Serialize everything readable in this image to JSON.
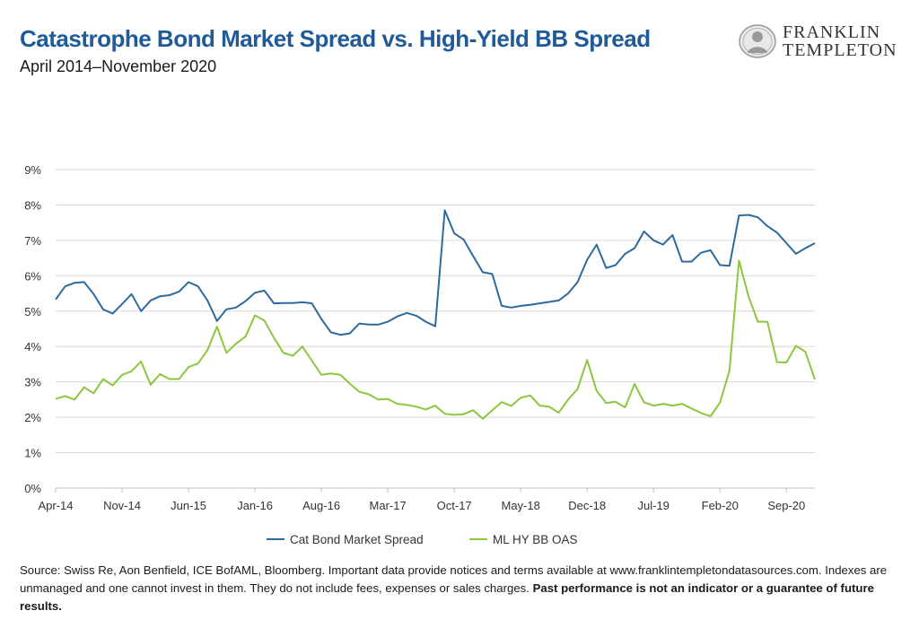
{
  "header": {
    "title": "Catastrophe Bond Market Spread vs. High-Yield BB Spread",
    "subtitle": "April 2014–November 2020"
  },
  "logo": {
    "line1": "FRANKLIN",
    "line2": "TEMPLETON"
  },
  "footer": {
    "source_text": "Source: Swiss Re, Aon Benfield, ICE BofAML, Bloomberg. Important data provide notices and terms available at www.franklintempletondatasources.com. Indexes are unmanaged and one cannot invest in them. They do not include fees, expenses or sales charges. ",
    "disclaimer_bold": "Past performance is not an indicator or a guarantee of future results."
  },
  "colors": {
    "cat_bond": "#2e6a9e",
    "hy_bb": "#8dc63f",
    "title": "#1f5a99",
    "grid": "#d9d9d9"
  },
  "chart_data": {
    "type": "line",
    "xlabel": "",
    "ylabel": "",
    "ylim": [
      0,
      9
    ],
    "yticks": [
      "0%",
      "1%",
      "2%",
      "3%",
      "4%",
      "5%",
      "6%",
      "7%",
      "8%",
      "9%"
    ],
    "xticks": [
      "Apr-14",
      "Nov-14",
      "Jun-15",
      "Jan-16",
      "Aug-16",
      "Mar-17",
      "Oct-17",
      "May-18",
      "Dec-18",
      "Jul-19",
      "Feb-20",
      "Sep-20"
    ],
    "grid": true,
    "legend_position": "bottom",
    "x_start": "Apr-14",
    "x_end": "Nov-20",
    "series": [
      {
        "name": "Cat Bond Market Spread",
        "values": [
          5.33,
          5.7,
          5.8,
          5.82,
          5.48,
          5.05,
          4.93,
          5.2,
          5.48,
          5.0,
          5.3,
          5.42,
          5.45,
          5.55,
          5.82,
          5.7,
          5.3,
          4.72,
          5.05,
          5.1,
          5.28,
          5.52,
          5.58,
          5.22,
          5.23,
          5.23,
          5.25,
          5.22,
          4.78,
          4.4,
          4.33,
          4.37,
          4.65,
          4.62,
          4.62,
          4.7,
          4.85,
          4.95,
          4.87,
          4.7,
          4.57,
          7.85,
          7.2,
          7.02,
          6.55,
          6.1,
          6.05,
          5.15,
          5.1,
          5.15,
          5.18,
          5.22,
          5.26,
          5.3,
          5.5,
          5.82,
          6.45,
          6.88,
          6.22,
          6.3,
          6.62,
          6.78,
          7.25,
          7.0,
          6.88,
          7.15,
          6.4,
          6.4,
          6.65,
          6.72,
          6.3,
          6.28,
          7.7,
          7.72,
          7.65,
          7.4,
          7.22,
          6.92,
          6.62,
          6.78,
          6.92
        ]
      },
      {
        "name": "ML HY BB OAS",
        "values": [
          2.52,
          2.6,
          2.5,
          2.85,
          2.68,
          3.08,
          2.9,
          3.2,
          3.3,
          3.58,
          2.92,
          3.22,
          3.08,
          3.08,
          3.42,
          3.52,
          3.9,
          4.56,
          3.82,
          4.08,
          4.28,
          4.88,
          4.73,
          4.25,
          3.82,
          3.74,
          4.0,
          3.6,
          3.2,
          3.24,
          3.2,
          2.95,
          2.72,
          2.65,
          2.5,
          2.52,
          2.38,
          2.35,
          2.3,
          2.22,
          2.33,
          2.1,
          2.07,
          2.09,
          2.2,
          1.96,
          2.2,
          2.43,
          2.32,
          2.55,
          2.62,
          2.33,
          2.3,
          2.13,
          2.5,
          2.8,
          3.62,
          2.75,
          2.4,
          2.44,
          2.28,
          2.94,
          2.42,
          2.33,
          2.38,
          2.33,
          2.38,
          2.25,
          2.12,
          2.03,
          2.42,
          3.32,
          6.43,
          5.42,
          4.7,
          4.7,
          3.56,
          3.55,
          4.02,
          3.85,
          3.07
        ]
      }
    ]
  }
}
